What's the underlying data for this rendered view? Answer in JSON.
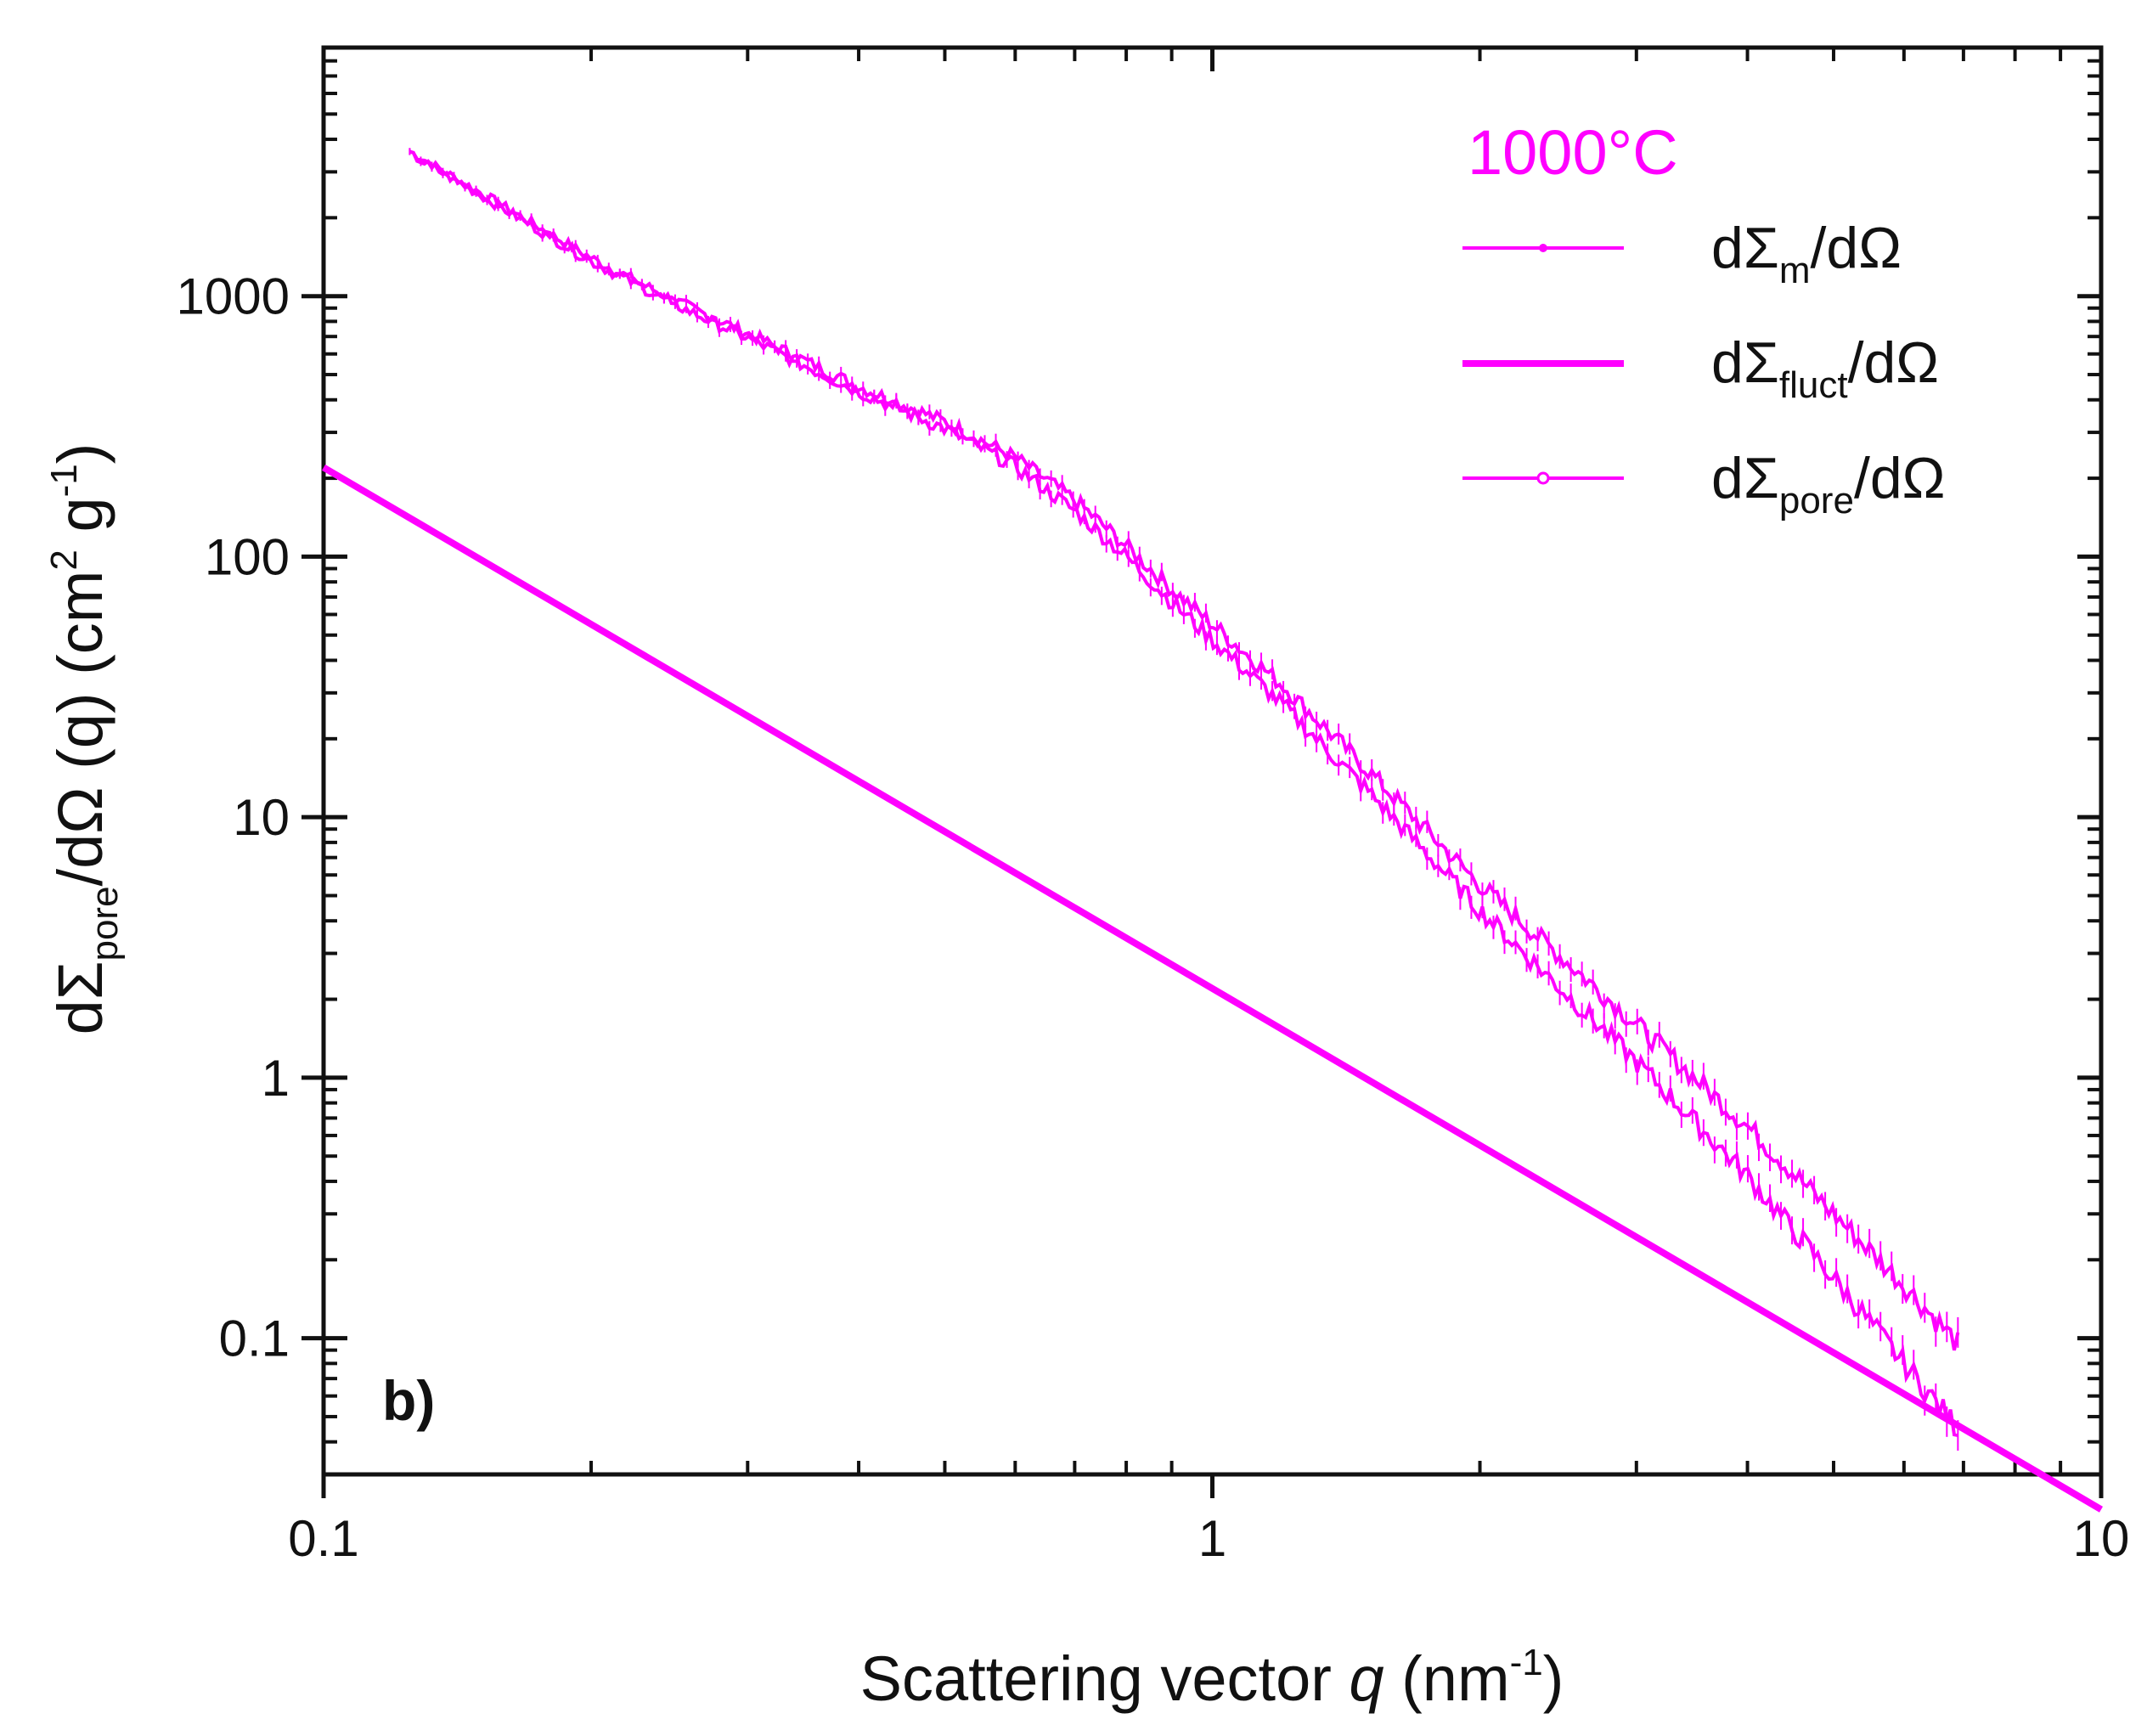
{
  "chart_data": {
    "type": "line",
    "panel_label": "b)",
    "legend_title": "1000°C",
    "xscale": "log",
    "yscale": "log",
    "xlim": [
      0.1,
      10
    ],
    "ylim": [
      0.03,
      9000
    ],
    "x_ticks": [
      {
        "value": 0.1,
        "label": "0.1"
      },
      {
        "value": 1,
        "label": "1"
      },
      {
        "value": 10,
        "label": "10"
      }
    ],
    "y_ticks": [
      {
        "value": 0.1,
        "label": "0.1"
      },
      {
        "value": 1,
        "label": "1"
      },
      {
        "value": 10,
        "label": "10"
      },
      {
        "value": 100,
        "label": "100"
      },
      {
        "value": 1000,
        "label": "1000"
      }
    ],
    "xlabel": {
      "main": "Scattering vector ",
      "var": "q",
      "unit_open": " (nm",
      "sup": "-1",
      "unit_close": ")"
    },
    "ylabel": {
      "p1": "dΣ",
      "sub1": "pore",
      "p2": "/dΩ (q) (cm",
      "sup1": "2",
      "p3": " g",
      "sup2": "-1",
      "p4": ")"
    },
    "legend_placement": "top-right",
    "series": [
      {
        "name": "dΣm/dΩ",
        "legend": {
          "pre": "dΣ",
          "sub": "m",
          "post": "/dΩ"
        },
        "color": "#ff00ff",
        "style": "noisy-line",
        "x": [
          0.125,
          0.15,
          0.2,
          0.25,
          0.3,
          0.35,
          0.4,
          0.5,
          0.6,
          0.7,
          0.8,
          0.9,
          1.0,
          1.2,
          1.5,
          2.0,
          2.5,
          3.0,
          4.0,
          5.0,
          6.0,
          6.9
        ],
        "y": [
          3600,
          2500,
          1400,
          950,
          720,
          560,
          450,
          330,
          240,
          165,
          110,
          75,
          55,
          32,
          15,
          5.5,
          2.8,
          1.6,
          0.65,
          0.3,
          0.16,
          0.095
        ]
      },
      {
        "name": "dΣfluct/dΩ",
        "legend": {
          "pre": "dΣ",
          "sub": "fluct",
          "post": "/dΩ"
        },
        "color": "#ff00ff",
        "style": "line",
        "x": [
          0.1,
          10
        ],
        "y": [
          220,
          0.022
        ]
      },
      {
        "name": "dΣpore/dΩ",
        "legend": {
          "pre": "dΣ",
          "sub": "pore",
          "post": "/dΩ"
        },
        "color": "#ff00ff",
        "style": "noisy-line-hollow",
        "x": [
          0.125,
          0.15,
          0.2,
          0.25,
          0.3,
          0.35,
          0.4,
          0.5,
          0.6,
          0.7,
          0.8,
          0.9,
          1.0,
          1.2,
          1.5,
          2.0,
          2.5,
          3.0,
          4.0,
          5.0,
          6.0,
          6.9
        ],
        "y": [
          3500,
          2450,
          1360,
          920,
          690,
          535,
          430,
          310,
          222,
          150,
          100,
          67,
          48,
          27,
          12.5,
          4.4,
          2.1,
          1.15,
          0.42,
          0.17,
          0.08,
          0.045
        ]
      }
    ]
  }
}
